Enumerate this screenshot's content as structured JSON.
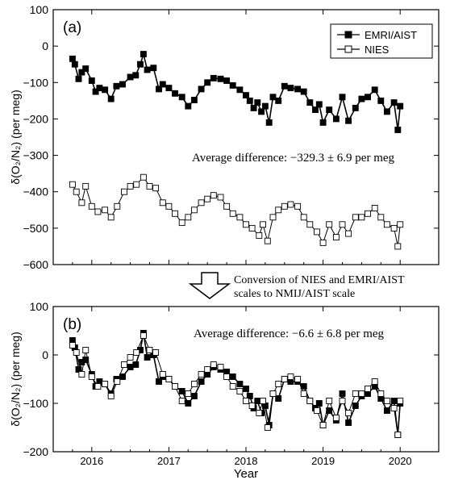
{
  "colors": {
    "axis": "#000000",
    "series_a": "#000000",
    "series_b_fill": "#ffffff"
  },
  "chart_data": [
    {
      "type": "line",
      "panel_label": "(a)",
      "ylabel": "δ(O₂/N₂) (per meg)",
      "xlabel": "",
      "xlim": [
        2015.5,
        2020.5
      ],
      "ylim": [
        -600,
        100
      ],
      "yticks": [
        100,
        0,
        -100,
        -200,
        -300,
        -400,
        -500,
        -600
      ],
      "legend": {
        "position": "top-right",
        "entries": [
          "EMRI/AIST",
          "NIES"
        ]
      },
      "annotation": "Average difference: −329.3 ± 6.9 per meg",
      "grid": false,
      "series": [
        {
          "name": "EMRI/AIST",
          "marker": "filled-square",
          "x": [
            2015.75,
            2015.78,
            2015.83,
            2015.87,
            2015.92,
            2016.0,
            2016.05,
            2016.1,
            2016.17,
            2016.25,
            2016.32,
            2016.4,
            2016.5,
            2016.57,
            2016.63,
            2016.67,
            2016.72,
            2016.8,
            2016.87,
            2016.92,
            2017.0,
            2017.08,
            2017.17,
            2017.25,
            2017.33,
            2017.42,
            2017.5,
            2017.58,
            2017.67,
            2017.75,
            2017.83,
            2017.92,
            2018.0,
            2018.05,
            2018.1,
            2018.15,
            2018.2,
            2018.25,
            2018.3,
            2018.35,
            2018.42,
            2018.5,
            2018.58,
            2018.67,
            2018.75,
            2018.83,
            2018.9,
            2018.95,
            2019.0,
            2019.08,
            2019.17,
            2019.25,
            2019.33,
            2019.42,
            2019.5,
            2019.58,
            2019.67,
            2019.75,
            2019.83,
            2019.92,
            2019.97,
            2020.0
          ],
          "y": [
            -35,
            -50,
            -90,
            -72,
            -62,
            -95,
            -125,
            -115,
            -120,
            -145,
            -110,
            -105,
            -85,
            -80,
            -50,
            -22,
            -65,
            -60,
            -118,
            -105,
            -115,
            -130,
            -140,
            -165,
            -148,
            -118,
            -100,
            -88,
            -90,
            -95,
            -108,
            -120,
            -135,
            -150,
            -170,
            -155,
            -180,
            -165,
            -210,
            -140,
            -150,
            -110,
            -115,
            -118,
            -125,
            -155,
            -175,
            -160,
            -210,
            -175,
            -200,
            -140,
            -205,
            -170,
            -145,
            -140,
            -120,
            -150,
            -180,
            -155,
            -230,
            -165
          ]
        },
        {
          "name": "NIES",
          "marker": "open-square",
          "x": [
            2015.75,
            2015.8,
            2015.87,
            2015.92,
            2016.0,
            2016.08,
            2016.17,
            2016.25,
            2016.33,
            2016.42,
            2016.5,
            2016.58,
            2016.67,
            2016.75,
            2016.83,
            2016.92,
            2017.0,
            2017.08,
            2017.17,
            2017.25,
            2017.33,
            2017.42,
            2017.5,
            2017.58,
            2017.67,
            2017.75,
            2017.83,
            2017.92,
            2018.0,
            2018.08,
            2018.17,
            2018.22,
            2018.28,
            2018.35,
            2018.42,
            2018.5,
            2018.58,
            2018.67,
            2018.75,
            2018.83,
            2018.92,
            2019.0,
            2019.08,
            2019.17,
            2019.25,
            2019.33,
            2019.42,
            2019.5,
            2019.58,
            2019.67,
            2019.75,
            2019.83,
            2019.92,
            2019.97,
            2020.0
          ],
          "y": [
            -380,
            -400,
            -430,
            -385,
            -440,
            -455,
            -450,
            -470,
            -440,
            -400,
            -385,
            -380,
            -360,
            -385,
            -390,
            -430,
            -440,
            -460,
            -485,
            -470,
            -450,
            -430,
            -420,
            -410,
            -415,
            -440,
            -460,
            -470,
            -490,
            -500,
            -520,
            -490,
            -535,
            -470,
            -450,
            -440,
            -435,
            -440,
            -470,
            -490,
            -510,
            -540,
            -490,
            -525,
            -490,
            -515,
            -470,
            -470,
            -460,
            -445,
            -470,
            -490,
            -500,
            -550,
            -490
          ]
        }
      ]
    },
    {
      "type": "line",
      "panel_label": "(b)",
      "ylabel": "δ(O₂/N₂) (per meg)",
      "xlabel": "Year",
      "xlim": [
        2015.5,
        2020.5
      ],
      "ylim": [
        -200,
        100
      ],
      "yticks": [
        100,
        0,
        -100,
        -200
      ],
      "xticks": [
        2016,
        2017,
        2018,
        2019,
        2020
      ],
      "annotation": "Average difference: −6.6 ± 6.8 per meg",
      "grid": false,
      "series": [
        {
          "name": "EMRI/AIST",
          "marker": "filled-square",
          "x": [
            2015.75,
            2015.78,
            2015.83,
            2015.87,
            2015.92,
            2016.0,
            2016.05,
            2016.1,
            2016.17,
            2016.25,
            2016.32,
            2016.4,
            2016.5,
            2016.57,
            2016.63,
            2016.67,
            2016.72,
            2016.8,
            2016.87,
            2016.92,
            2017.0,
            2017.08,
            2017.17,
            2017.25,
            2017.33,
            2017.42,
            2017.5,
            2017.58,
            2017.67,
            2017.75,
            2017.83,
            2017.92,
            2018.0,
            2018.05,
            2018.1,
            2018.15,
            2018.2,
            2018.25,
            2018.3,
            2018.35,
            2018.42,
            2018.5,
            2018.58,
            2018.67,
            2018.75,
            2018.83,
            2018.9,
            2018.95,
            2019.0,
            2019.08,
            2019.17,
            2019.25,
            2019.33,
            2019.42,
            2019.5,
            2019.58,
            2019.67,
            2019.75,
            2019.83,
            2019.92,
            2019.97,
            2020.0
          ],
          "y": [
            30,
            15,
            -30,
            -15,
            -10,
            -40,
            -65,
            -55,
            -60,
            -80,
            -50,
            -45,
            -25,
            -20,
            10,
            45,
            -5,
            0,
            -55,
            -45,
            -50,
            -65,
            -75,
            -100,
            -85,
            -55,
            -40,
            -25,
            -30,
            -35,
            -45,
            -60,
            -70,
            -85,
            -110,
            -95,
            -120,
            -105,
            -145,
            -80,
            -90,
            -50,
            -55,
            -55,
            -65,
            -95,
            -110,
            -100,
            -145,
            -115,
            -135,
            -80,
            -140,
            -105,
            -85,
            -80,
            -65,
            -90,
            -115,
            -95,
            -165,
            -100
          ]
        },
        {
          "name": "NIES",
          "marker": "open-square",
          "x": [
            2015.75,
            2015.8,
            2015.87,
            2015.92,
            2016.0,
            2016.08,
            2016.17,
            2016.25,
            2016.33,
            2016.42,
            2016.5,
            2016.58,
            2016.67,
            2016.75,
            2016.83,
            2016.92,
            2017.0,
            2017.08,
            2017.17,
            2017.25,
            2017.33,
            2017.42,
            2017.5,
            2017.58,
            2017.67,
            2017.75,
            2017.83,
            2017.92,
            2018.0,
            2018.08,
            2018.17,
            2018.22,
            2018.28,
            2018.35,
            2018.42,
            2018.5,
            2018.58,
            2018.67,
            2018.75,
            2018.83,
            2018.92,
            2019.0,
            2019.08,
            2019.17,
            2019.25,
            2019.33,
            2019.42,
            2019.5,
            2019.58,
            2019.67,
            2019.75,
            2019.83,
            2019.92,
            2019.97,
            2020.0
          ],
          "y": [
            20,
            5,
            -40,
            10,
            -45,
            -65,
            -60,
            -85,
            -55,
            -20,
            -5,
            5,
            40,
            10,
            5,
            -40,
            -50,
            -65,
            -95,
            -80,
            -60,
            -40,
            -30,
            -20,
            -25,
            -45,
            -65,
            -75,
            -95,
            -105,
            -120,
            -95,
            -150,
            -80,
            -60,
            -50,
            -45,
            -50,
            -80,
            -95,
            -115,
            -145,
            -95,
            -130,
            -95,
            -120,
            -80,
            -80,
            -70,
            -55,
            -80,
            -95,
            -110,
            -165,
            -95
          ]
        }
      ]
    }
  ],
  "conversion_note": {
    "line1": "Conversion of NIES and EMRI/AIST",
    "line2": "scales to NMIJ/AIST scale"
  }
}
